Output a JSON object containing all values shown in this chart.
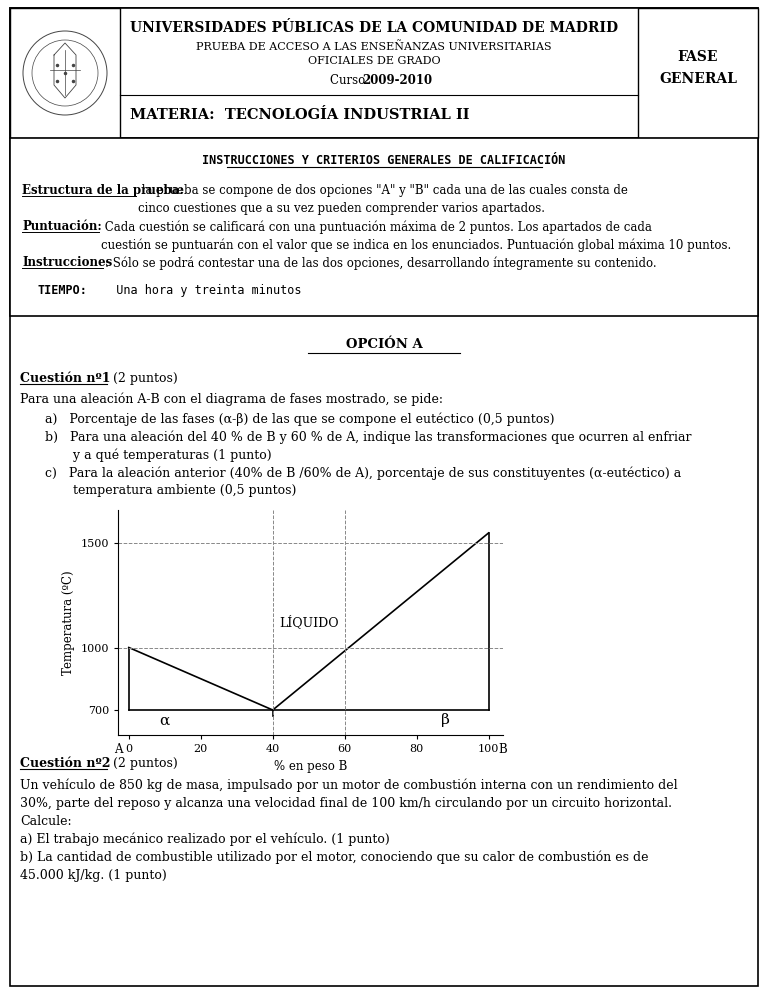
{
  "header_title": "UNIVERSIDADES PÚBLICAS DE LA COMUNIDAD DE MADRID",
  "header_sub1": "PRUEBA DE ACCESO A LAS ENSEÑANZAS UNIVERSITARIAS",
  "header_sub2": "OFICIALES DE GRADO",
  "header_curso_label": "Curso ",
  "header_curso_bold": "2009-2010",
  "header_materia": "MATERIA:  TECNOLOGÍA INDUSTRIAL II",
  "header_fase": "FASE\nGENERAL",
  "instrucciones_title": "INSTRUCCIONES Y CRITERIOS GENERALES DE CALIFICACIÓN",
  "estructura_label": "Estructura de la prueba:",
  "estructura_text": " la prueba se compone de dos opciones \"A\" y \"B\" cada una de las cuales consta de\ncinco cuestiones que a su vez pueden comprender varios apartados.",
  "puntuacion_label": "Puntuación:",
  "puntuacion_text": " Cada cuestión se calificará con una puntuación máxima de 2 puntos. Los apartados de cada\ncuestión se puntuarán con el valor que se indica en los enunciados. Puntuación global máxima 10 puntos.",
  "instrucciones_label": "Instrucciones",
  "instrucciones_text": ": Sólo se podrá contestar una de las dos opciones, desarrollando íntegramente su contenido.",
  "tiempo_label": "TIEMPO:",
  "tiempo_text": "  Una hora y treinta minutos",
  "opcion_title": "OPCIÓN A",
  "cuestion1_label": "Cuestión nº1",
  "cuestion1_pts": " (2 puntos)",
  "cuestion1_intro": "Para una aleación A-B con el diagrama de fases mostrado, se pide:",
  "cuestion1_a": "a)   Porcentaje de las fases (α-β) de las que se compone el eutéctico (0,5 puntos)",
  "cuestion1_b1": "b)   Para una aleación del 40 % de B y 60 % de A, indique las transformaciones que ocurren al enfriar",
  "cuestion1_b2": "       y a qué temperaturas (1 punto)",
  "cuestion1_c1": "c)   Para la aleación anterior (40% de B /60% de A), porcentaje de sus constituyentes (α-eutéctico) a",
  "cuestion1_c2": "       temperatura ambiente (0,5 puntos)",
  "diagram_ylabel": "Temperatura (ºC)",
  "diagram_xlabel": "% en peso B",
  "diagram_liquid_label": "LÍQUIDO",
  "diagram_alpha_label": "α",
  "diagram_beta_label": "β",
  "cuestion2_label": "Cuestión nº2",
  "cuestion2_pts": " (2 puntos)",
  "cuestion2_text1": "Un vehículo de 850 kg de masa, impulsado por un motor de combustión interna con un rendimiento del",
  "cuestion2_text2": "30%, parte del reposo y alcanza una velocidad final de 100 km/h circulando por un circuito horizontal.",
  "cuestion2_text3": "Calcule:",
  "cuestion2_a": "a) El trabajo mecánico realizado por el vehículo. (1 punto)",
  "cuestion2_b1": "b) La cantidad de combustible utilizado por el motor, conociendo que su calor de combustión es de",
  "cuestion2_b2": "45.000 kJ/kg. (1 punto)"
}
